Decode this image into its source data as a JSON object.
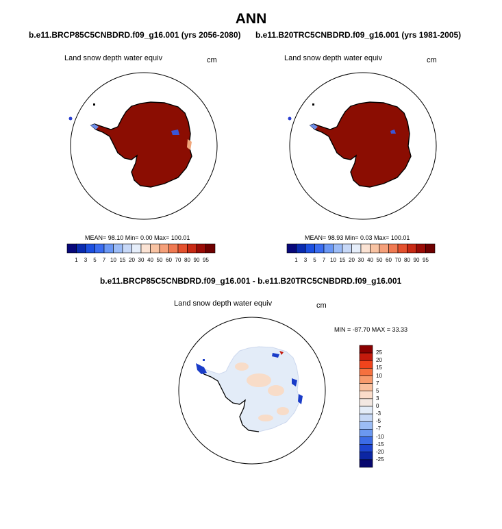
{
  "title": "ANN",
  "panels": [
    {
      "case_label": "b.e11.BRCP85C5CNBDRD.f09_g16.001 (yrs 2056-2080)",
      "variable": "Land snow depth water equiv",
      "units": "cm",
      "stats": "MEAN=  98.10  Min=   0.00  Max= 100.01"
    },
    {
      "case_label": "b.e11.B20TRC5CNBDRD.f09_g16.001 (yrs 1981-2005)",
      "variable": "Land snow depth water equiv",
      "units": "cm",
      "stats": "MEAN=  98.93  Min=   0.03  Max= 100.01"
    }
  ],
  "diff": {
    "case_label": "b.e11.BRCP85C5CNBDRD.f09_g16.001 - b.e11.B20TRC5CNBDRD.f09_g16.001",
    "variable": "Land snow depth water equiv",
    "units": "cm",
    "stats": "MIN = -87.70 MAX =  33.33"
  },
  "colorbar": {
    "labels": [
      "1",
      "3",
      "5",
      "7",
      "10",
      "15",
      "20",
      "30",
      "40",
      "50",
      "60",
      "70",
      "80",
      "90",
      "95"
    ],
    "colors": [
      "#08087a",
      "#0a2bb0",
      "#1c4fe0",
      "#3a6cf0",
      "#6a97f5",
      "#9cbcf7",
      "#c7d8f7",
      "#e6eefa",
      "#fbe3d4",
      "#f8c3a3",
      "#f5a07a",
      "#f07a52",
      "#e4512e",
      "#c82a14",
      "#9a0c06",
      "#6e0000"
    ]
  },
  "diff_colorbar": {
    "labels": [
      "25",
      "20",
      "15",
      "10",
      "7",
      "5",
      "3",
      "0",
      "-3",
      "-5",
      "-7",
      "-10",
      "-15",
      "-20",
      "-25"
    ],
    "colors": [
      "#8a0000",
      "#c41a0c",
      "#f0441c",
      "#f5703e",
      "#f79a6c",
      "#f9bf9d",
      "#fbdcc9",
      "#f3e8e2",
      "#e3ecf8",
      "#c6d8f6",
      "#9bbcf4",
      "#6b98f0",
      "#3c6ce6",
      "#1d44cf",
      "#0c26a3",
      "#08086e"
    ]
  }
}
